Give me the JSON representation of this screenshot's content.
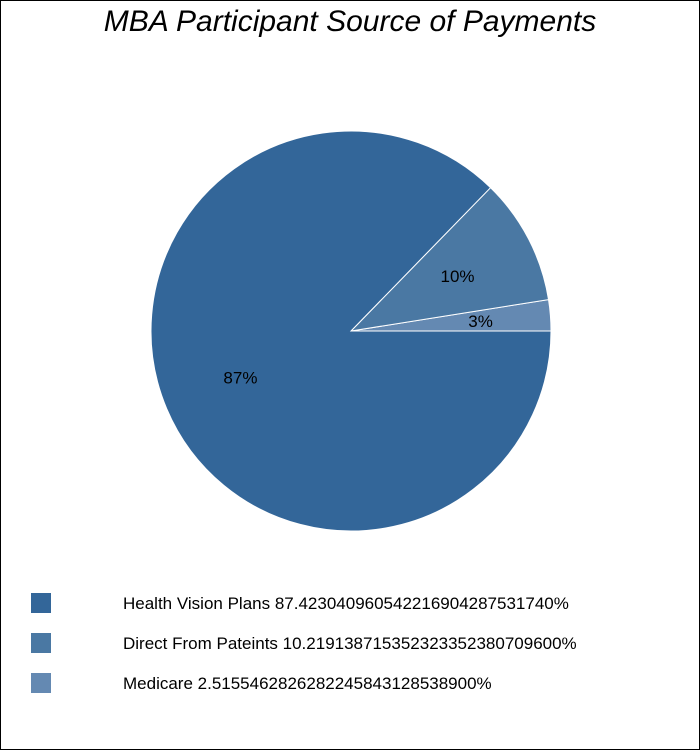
{
  "chart_data": {
    "type": "pie",
    "title": "MBA Participant Source of Payments",
    "slices": [
      {
        "label": "Health Vision Plans",
        "value": 87.42304096054222,
        "display": "87%",
        "color": "#336699",
        "legend": "Health Vision Plans 87.423040960542216904287531740%"
      },
      {
        "label": "Direct From Pateints",
        "value": 10.219138715352324,
        "display": "10%",
        "color": "#4a78a3",
        "legend": "Direct From Pateints 10.219138715352323352380709600%"
      },
      {
        "label": "Medicare",
        "value": 2.5155462826282244,
        "display": "3%",
        "color": "#6489b2",
        "legend": "Medicare 2.5155462826282245843128538900%"
      }
    ]
  }
}
